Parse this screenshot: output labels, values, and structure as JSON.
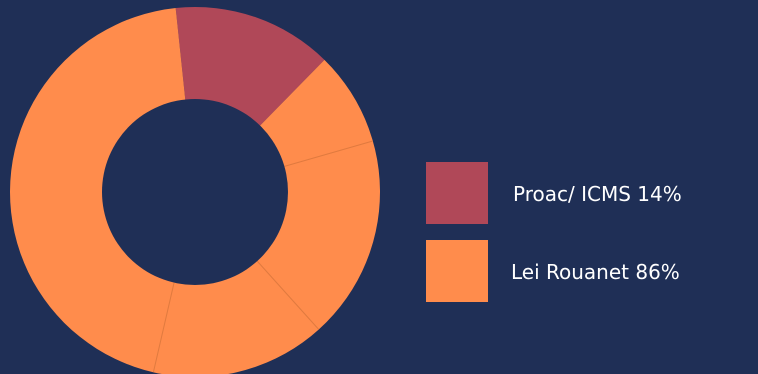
{
  "chart_data": {
    "type": "pie",
    "variant": "donut",
    "categories": [
      "Proac/ ICMS",
      "Lei Rouanet"
    ],
    "values": [
      14,
      86
    ],
    "labels": [
      "Proac/ ICMS 14%",
      "Lei Rouanet 86%"
    ],
    "colors": [
      "#b04858",
      "#ff8c4c"
    ],
    "divider_color": "#e07a3f",
    "background": "#1f2f56",
    "legend": "right",
    "title": "",
    "xlabel": "",
    "ylabel": ""
  }
}
